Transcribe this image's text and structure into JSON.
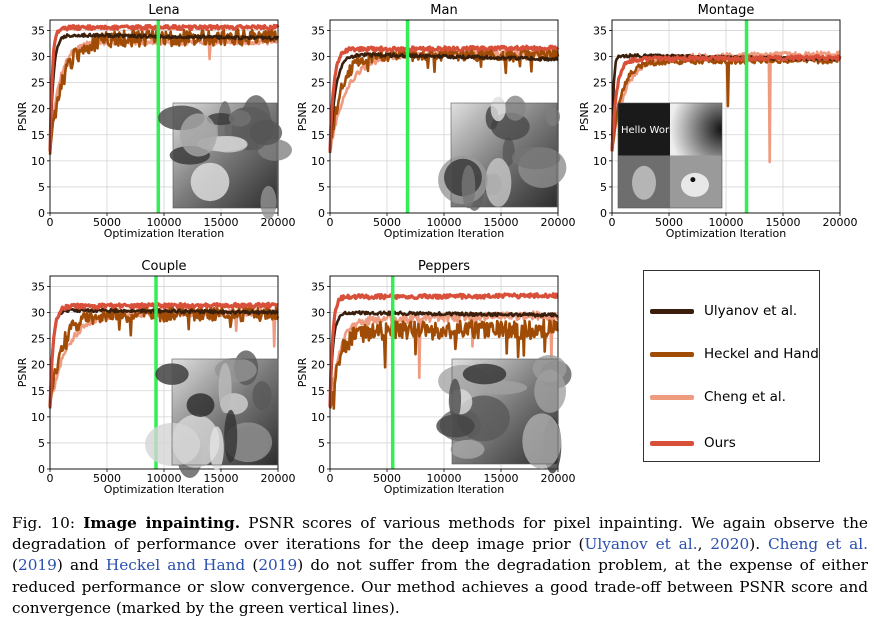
{
  "colors": {
    "Ulyanov et al.": "#3a1f0c",
    "Heckel and Hand": "#a04c06",
    "Cheng et al.": "#ee9b80",
    "Ours": "#d9503a",
    "marker": "#33ee55"
  },
  "legend": {
    "entries": [
      {
        "name": "Ulyanov et al.",
        "color": "#3a1f0c"
      },
      {
        "name": "Heckel and Hand",
        "color": "#a04c06"
      },
      {
        "name": "Cheng et al.",
        "color": "#ee9b80"
      },
      {
        "name": "Ours",
        "color": "#d9503a"
      }
    ]
  },
  "chart_data": [
    {
      "type": "line",
      "title": "Lena",
      "xlabel": "Optimization Iteration",
      "ylabel": "PSNR",
      "xlim": [
        0,
        20000
      ],
      "ylim": [
        0,
        37
      ],
      "xticks": [
        0,
        5000,
        10000,
        15000,
        20000
      ],
      "yticks": [
        0,
        5,
        10,
        15,
        20,
        25,
        30,
        35
      ],
      "vline": 9500,
      "inset": "Lena",
      "series": [
        {
          "name": "Ulyanov et al.",
          "plateau": 34.2,
          "end": 33.5,
          "rise": 900,
          "noise": 0.3,
          "dips": []
        },
        {
          "name": "Heckel and Hand",
          "plateau": 33.3,
          "end": 33.8,
          "rise": 3500,
          "noise": 1.6,
          "dips": []
        },
        {
          "name": "Cheng et al.",
          "plateau": 32.8,
          "end": 32.8,
          "rise": 2500,
          "noise": 0.5,
          "dips": [
            [
              14000,
              29.5
            ]
          ]
        },
        {
          "name": "Ours",
          "plateau": 35.5,
          "end": 35.6,
          "rise": 600,
          "noise": 0.4,
          "dips": []
        }
      ]
    },
    {
      "type": "line",
      "title": "Man",
      "xlabel": "Optimization Iteration",
      "ylabel": "PSNR",
      "xlim": [
        0,
        20000
      ],
      "ylim": [
        0,
        37
      ],
      "xticks": [
        0,
        5000,
        10000,
        15000,
        20000
      ],
      "yticks": [
        0,
        5,
        10,
        15,
        20,
        25,
        30,
        35
      ],
      "vline": 6800,
      "inset": "Man",
      "series": [
        {
          "name": "Ulyanov et al.",
          "plateau": 30.5,
          "end": 29.5,
          "rise": 1500,
          "noise": 0.3,
          "dips": []
        },
        {
          "name": "Heckel and Hand",
          "plateau": 30.5,
          "end": 30.2,
          "rise": 3000,
          "noise": 1.2,
          "dips": []
        },
        {
          "name": "Cheng et al.",
          "plateau": 30.4,
          "end": 30.6,
          "rise": 4500,
          "noise": 0.6,
          "dips": []
        },
        {
          "name": "Ours",
          "plateau": 31.4,
          "end": 31.6,
          "rise": 1000,
          "noise": 0.4,
          "dips": []
        }
      ]
    },
    {
      "type": "line",
      "title": "Montage",
      "xlabel": "Optimization Iteration",
      "ylabel": "PSNR",
      "xlim": [
        0,
        20000
      ],
      "ylim": [
        0,
        37
      ],
      "xticks": [
        0,
        5000,
        10000,
        15000,
        20000
      ],
      "yticks": [
        0,
        5,
        10,
        15,
        20,
        25,
        30,
        35
      ],
      "vline": 11800,
      "inset": "Montage",
      "series": [
        {
          "name": "Ulyanov et al.",
          "plateau": 30.2,
          "end": 29.5,
          "rise": 400,
          "noise": 0.3,
          "dips": []
        },
        {
          "name": "Heckel and Hand",
          "plateau": 29.0,
          "end": 29.2,
          "rise": 2500,
          "noise": 0.5,
          "dips": [
            [
              10200,
              20.5
            ],
            [
              13900,
              29.0
            ]
          ]
        },
        {
          "name": "Cheng et al.",
          "plateau": 29.8,
          "end": 30.5,
          "rise": 3500,
          "noise": 0.5,
          "dips": [
            [
              13800,
              9.8
            ]
          ]
        },
        {
          "name": "Ours",
          "plateau": 29.5,
          "end": 29.8,
          "rise": 1200,
          "noise": 0.4,
          "dips": []
        }
      ]
    },
    {
      "type": "line",
      "title": "Couple",
      "xlabel": "Optimization Iteration",
      "ylabel": "PSNR",
      "xlim": [
        0,
        20000
      ],
      "ylim": [
        0,
        37
      ],
      "xticks": [
        0,
        5000,
        10000,
        15000,
        20000
      ],
      "yticks": [
        0,
        5,
        10,
        15,
        20,
        25,
        30,
        35
      ],
      "vline": 9300,
      "inset": "Couple",
      "series": [
        {
          "name": "Ulyanov et al.",
          "plateau": 30.5,
          "end": 30.0,
          "rise": 800,
          "noise": 0.3,
          "dips": []
        },
        {
          "name": "Heckel and Hand",
          "plateau": 29.5,
          "end": 29.8,
          "rise": 3000,
          "noise": 1.4,
          "dips": []
        },
        {
          "name": "Cheng et al.",
          "plateau": 29.7,
          "end": 30.0,
          "rise": 4500,
          "noise": 0.6,
          "dips": [
            [
              16300,
              26.5
            ],
            [
              19700,
              23.5
            ]
          ]
        },
        {
          "name": "Ours",
          "plateau": 31.2,
          "end": 31.4,
          "rise": 900,
          "noise": 0.4,
          "dips": []
        }
      ]
    },
    {
      "type": "line",
      "title": "Peppers",
      "xlabel": "Optimization Iteration",
      "ylabel": "PSNR",
      "xlim": [
        0,
        20000
      ],
      "ylim": [
        0,
        37
      ],
      "xticks": [
        0,
        5000,
        10000,
        15000,
        20000
      ],
      "yticks": [
        0,
        5,
        10,
        15,
        20,
        25,
        30,
        35
      ],
      "vline": 5500,
      "inset": "Peppers",
      "series": [
        {
          "name": "Ulyanov et al.",
          "plateau": 30.0,
          "end": 29.5,
          "rise": 800,
          "noise": 0.3,
          "dips": []
        },
        {
          "name": "Heckel and Hand",
          "plateau": 26.5,
          "end": 26.8,
          "rise": 2500,
          "noise": 1.8,
          "dips": [
            [
              4800,
              19.5
            ],
            [
              7500,
              22.0
            ],
            [
              11000,
              23.0
            ],
            [
              16500,
              21.5
            ],
            [
              18800,
              22.5
            ]
          ]
        },
        {
          "name": "Cheng et al.",
          "plateau": 28.5,
          "end": 29.5,
          "rise": 2500,
          "noise": 0.8,
          "dips": [
            [
              7800,
              17.5
            ],
            [
              12500,
              23.5
            ],
            [
              19400,
              21.0
            ]
          ]
        },
        {
          "name": "Ours",
          "plateau": 33.0,
          "end": 33.2,
          "rise": 700,
          "noise": 0.4,
          "dips": []
        }
      ]
    }
  ],
  "insets": {
    "montage_text": "Hello World"
  },
  "caption": {
    "label": "Fig. 10:",
    "title": "Image inpainting.",
    "t1": "PSNR scores of various methods for pixel inpainting. We again observe the degradation of performance over iterations for the deep image prior (",
    "c1": "Ulyanov et al.",
    "t2": ", ",
    "c2": "2020",
    "t3": "). ",
    "c3": "Cheng et al.",
    "t4": " (",
    "c4": "2019",
    "t5": ") and ",
    "c5": "Heckel and Hand",
    "t6": " (",
    "c6": "2019",
    "t7": ") do not suffer from the degradation problem, at the expense of either reduced performance or slow convergence. Our method achieves a good trade-off between PSNR score and convergence (marked by the green vertical lines)."
  }
}
